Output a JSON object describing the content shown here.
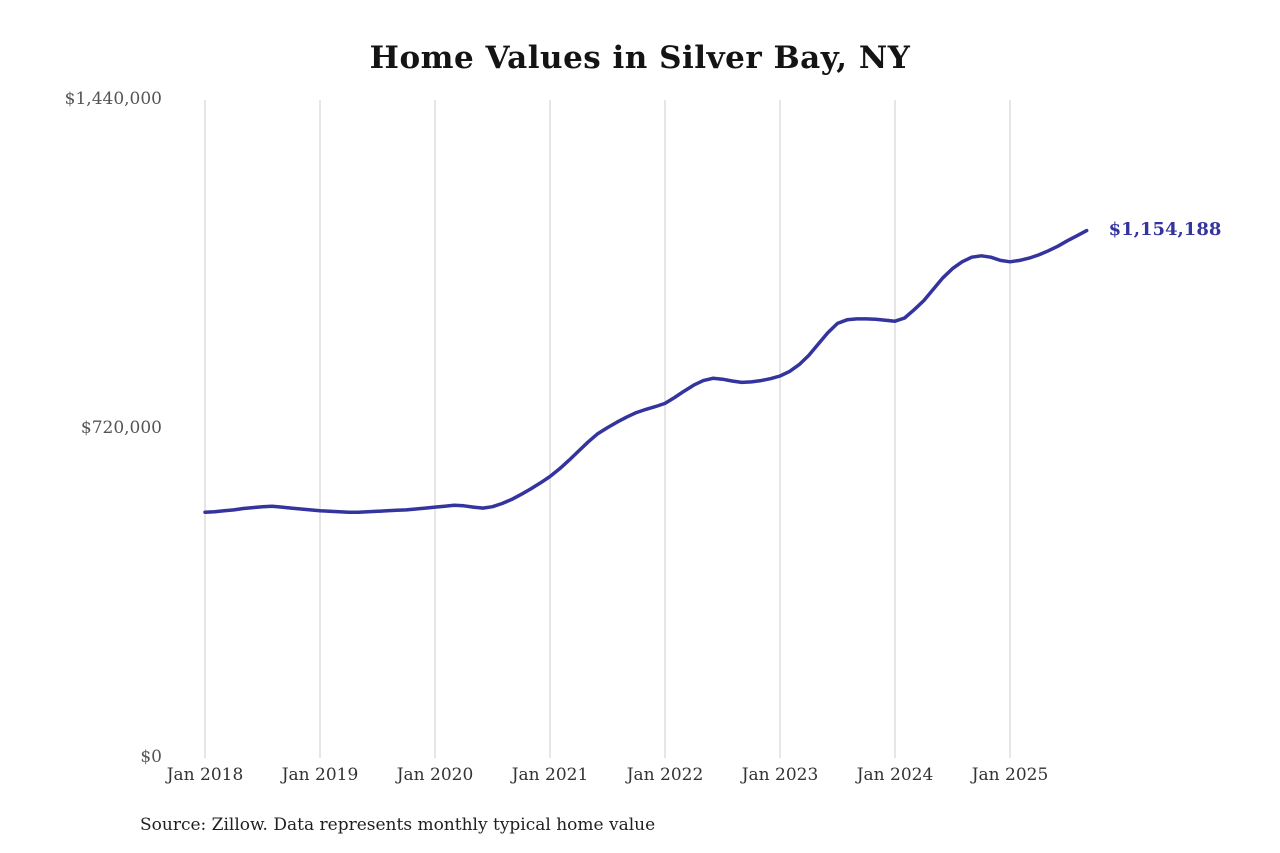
{
  "title": "Home Values in Silver Bay, NY",
  "source_note": "Source: Zillow. Data represents monthly typical home value",
  "end_label": "$1,154,188",
  "colors": {
    "line": "#34349e",
    "end_label": "#34349e",
    "grid": "#cccccc",
    "axis_text": "#555555",
    "title_text": "#141414"
  },
  "chart_data": {
    "type": "line",
    "title": "Home Values in Silver Bay, NY",
    "xlabel": "",
    "ylabel": "",
    "ylim": [
      0,
      1440000
    ],
    "grid": "vertical-only",
    "legend": "none",
    "y_ticks": [
      {
        "value": 0,
        "label": "$0"
      },
      {
        "value": 720000,
        "label": "$720,000"
      },
      {
        "value": 1440000,
        "label": "$1,440,000"
      }
    ],
    "x_tick_labels": [
      "Jan 2018",
      "Jan 2019",
      "Jan 2020",
      "Jan 2021",
      "Jan 2022",
      "Jan 2023",
      "Jan 2024",
      "Jan 2025"
    ],
    "x": [
      "2018-01",
      "2018-02",
      "2018-03",
      "2018-04",
      "2018-05",
      "2018-06",
      "2018-07",
      "2018-08",
      "2018-09",
      "2018-10",
      "2018-11",
      "2018-12",
      "2019-01",
      "2019-02",
      "2019-03",
      "2019-04",
      "2019-05",
      "2019-06",
      "2019-07",
      "2019-08",
      "2019-09",
      "2019-10",
      "2019-11",
      "2019-12",
      "2020-01",
      "2020-02",
      "2020-03",
      "2020-04",
      "2020-05",
      "2020-06",
      "2020-07",
      "2020-08",
      "2020-09",
      "2020-10",
      "2020-11",
      "2020-12",
      "2021-01",
      "2021-02",
      "2021-03",
      "2021-04",
      "2021-05",
      "2021-06",
      "2021-07",
      "2021-08",
      "2021-09",
      "2021-10",
      "2021-11",
      "2021-12",
      "2022-01",
      "2022-02",
      "2022-03",
      "2022-04",
      "2022-05",
      "2022-06",
      "2022-07",
      "2022-08",
      "2022-09",
      "2022-10",
      "2022-11",
      "2022-12",
      "2023-01",
      "2023-02",
      "2023-03",
      "2023-04",
      "2023-05",
      "2023-06",
      "2023-07",
      "2023-08",
      "2023-09",
      "2023-10",
      "2023-11",
      "2023-12",
      "2024-01",
      "2024-02",
      "2024-03",
      "2024-04",
      "2024-05",
      "2024-06",
      "2024-07",
      "2024-08",
      "2024-09",
      "2024-10",
      "2024-11",
      "2024-12",
      "2025-01",
      "2025-02",
      "2025-03",
      "2025-04",
      "2025-05",
      "2025-06",
      "2025-07",
      "2025-08",
      "2025-09"
    ],
    "values": [
      538000,
      539000,
      541000,
      543000,
      546000,
      548000,
      550000,
      551000,
      549000,
      547000,
      545000,
      543000,
      541000,
      540000,
      539000,
      538000,
      538000,
      539000,
      540000,
      541000,
      542000,
      543000,
      545000,
      547000,
      549000,
      551000,
      553000,
      552000,
      549000,
      547000,
      550000,
      557000,
      566000,
      577000,
      589000,
      602000,
      616000,
      633000,
      652000,
      672000,
      692000,
      710000,
      723000,
      735000,
      746000,
      756000,
      763000,
      769000,
      776000,
      789000,
      803000,
      816000,
      826000,
      831000,
      829000,
      825000,
      822000,
      823000,
      826000,
      830000,
      836000,
      846000,
      861000,
      881000,
      906000,
      931000,
      951000,
      959000,
      961000,
      961000,
      960000,
      958000,
      956000,
      963000,
      981000,
      1001000,
      1026000,
      1051000,
      1071000,
      1086000,
      1096000,
      1099000,
      1096000,
      1089000,
      1086000,
      1089000,
      1094000,
      1101000,
      1110000,
      1120000,
      1132000,
      1143000,
      1154188
    ],
    "annotation": {
      "text": "$1,154,188",
      "value": 1154188,
      "position": "end-of-line"
    }
  }
}
